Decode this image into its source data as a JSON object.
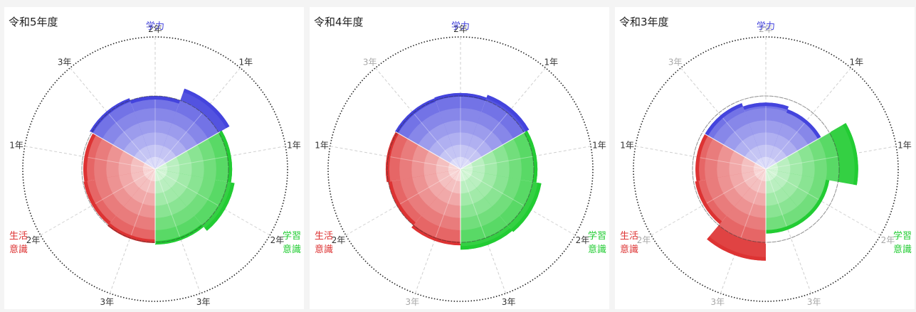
{
  "colors": {
    "academic": "#4444dd",
    "learning": "#22cc33",
    "life": "#dd3333"
  },
  "chart_data": [
    {
      "type": "polar-area",
      "title": "令和5年度",
      "category_labels": {
        "academic": "学力",
        "learning": [
          "学習",
          "意識"
        ],
        "life": [
          "生活",
          "意識"
        ]
      },
      "tick_labels": [
        {
          "text": "2年",
          "faded": false
        },
        {
          "text": "1年",
          "faded": false
        },
        {
          "text": "1年",
          "faded": false
        },
        {
          "text": "2年",
          "faded": false
        },
        {
          "text": "3年",
          "faded": false
        },
        {
          "text": "3年",
          "faded": false
        },
        {
          "text": "2年",
          "faded": false
        },
        {
          "text": "1年",
          "faded": false
        },
        {
          "text": "3年",
          "faded": false
        }
      ],
      "reference_level": 1.0,
      "values": [
        1.03,
        1.0,
        1.17,
        1.05,
        1.1,
        1.03,
        1.01,
        0.99,
        0.98
      ]
    },
    {
      "type": "polar-area",
      "title": "令和4年度",
      "category_labels": {
        "academic": "学力",
        "learning": [
          "学習",
          "意識"
        ],
        "life": [
          "生活",
          "意識"
        ]
      },
      "tick_labels": [
        {
          "text": "2年",
          "faded": false
        },
        {
          "text": "1年",
          "faded": false
        },
        {
          "text": "1年",
          "faded": false
        },
        {
          "text": "2年",
          "faded": false
        },
        {
          "text": "3年",
          "faded": false
        },
        {
          "text": "3年",
          "faded": true
        },
        {
          "text": "2年",
          "faded": false
        },
        {
          "text": "1年",
          "faded": false
        },
        {
          "text": "3年",
          "faded": true
        }
      ],
      "reference_level": 1.0,
      "values": [
        1.03,
        1.04,
        1.08,
        1.05,
        1.12,
        1.1,
        1.04,
        1.0,
        1.02
      ]
    },
    {
      "type": "polar-area",
      "title": "令和3年度",
      "category_labels": {
        "academic": "学力",
        "learning": [
          "学習",
          "意識"
        ],
        "life": [
          "生活",
          "意識"
        ]
      },
      "tick_labels": [
        {
          "text": "2年",
          "faded": true
        },
        {
          "text": "1年",
          "faded": false
        },
        {
          "text": "1年",
          "faded": false
        },
        {
          "text": "2年",
          "faded": true
        },
        {
          "text": "3年",
          "faded": true
        },
        {
          "text": "3年",
          "faded": true
        },
        {
          "text": "2年",
          "faded": true
        },
        {
          "text": "1年",
          "faded": false
        },
        {
          "text": "3年",
          "faded": true
        }
      ],
      "reference_level": 1.0,
      "values": [
        0.96,
        0.91,
        0.87,
        1.26,
        0.88,
        0.88,
        1.25,
        0.98,
        0.96
      ]
    }
  ]
}
